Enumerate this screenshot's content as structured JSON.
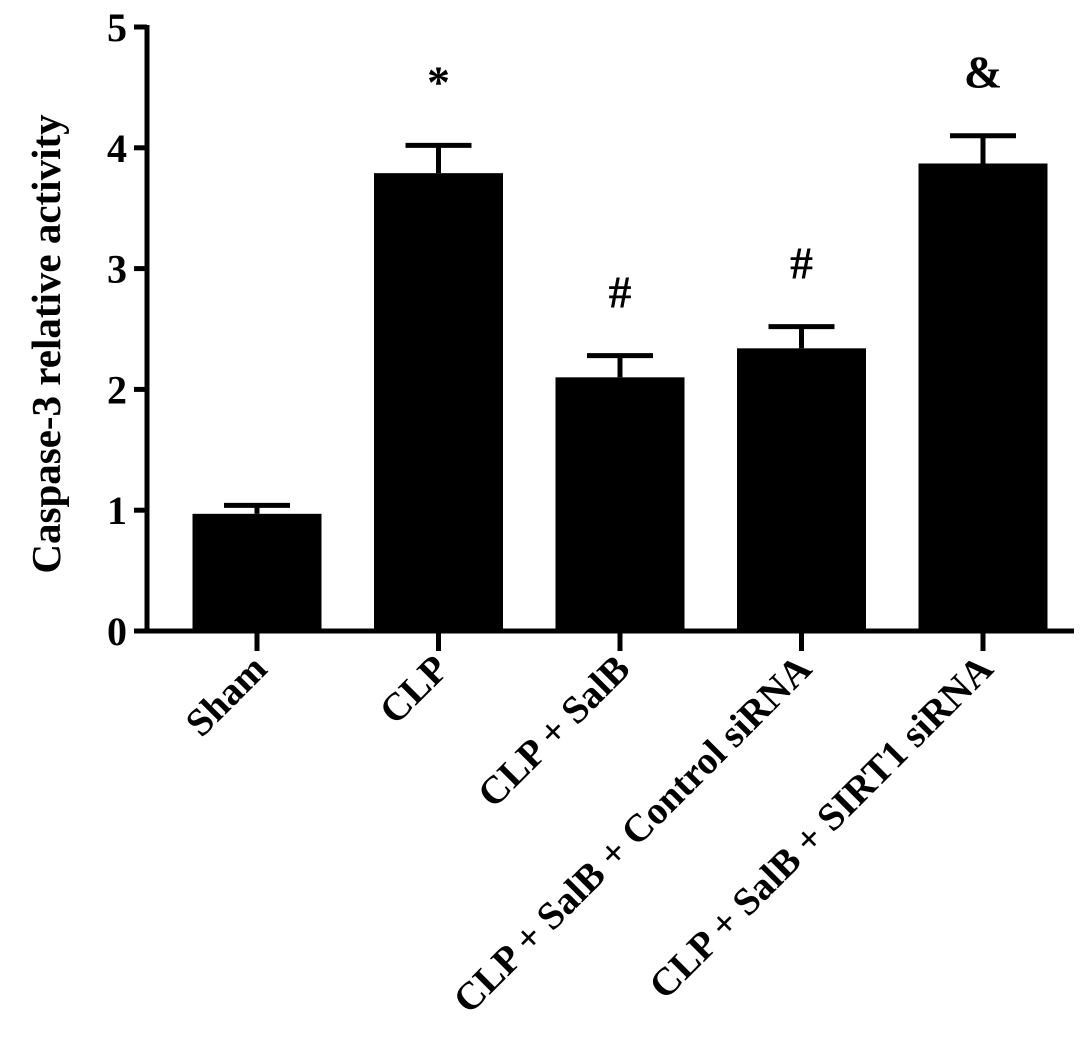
{
  "chart_data": {
    "type": "bar",
    "ylabel": "Caspase-3 relative activity",
    "xlabel": "",
    "ylim": [
      0,
      5
    ],
    "yticks": [
      0,
      1,
      2,
      3,
      4,
      5
    ],
    "grid": false,
    "bar_color": "#000000",
    "categories": [
      "Sham",
      "CLP",
      "CLP + SalB",
      "CLP + SalB + Control siRNA",
      "CLP + SalB + SIRT1 siRNA"
    ],
    "values": [
      0.97,
      3.79,
      2.1,
      2.34,
      3.87
    ],
    "errors": [
      0.07,
      0.23,
      0.18,
      0.18,
      0.23
    ],
    "significance": [
      "",
      "*",
      "#",
      "#",
      "&"
    ]
  }
}
